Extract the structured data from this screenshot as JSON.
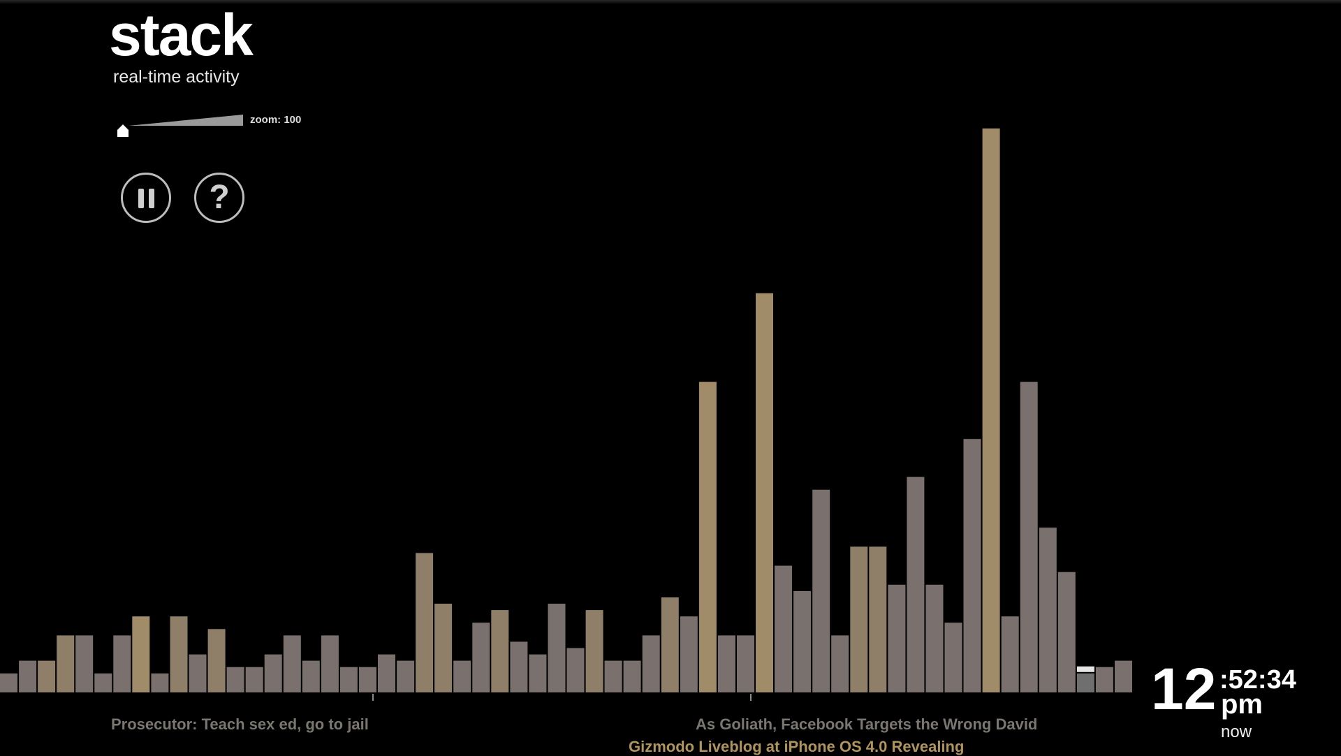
{
  "app": {
    "title": "stack",
    "subtitle": "real-time activity"
  },
  "controls": {
    "zoom_label": "zoom: 100",
    "zoom_value": 100,
    "pause_icon": "pause-icon",
    "help_icon": "help-icon"
  },
  "clock": {
    "hour": "12",
    "minutes_seconds": ":52:34",
    "ampm": "pm",
    "status": "now"
  },
  "headlines": [
    {
      "text": "Prosecutor: Teach sex ed, go to jail"
    },
    {
      "text": "As Goliath, Facebook Targets the Wrong David"
    },
    {
      "text": "Gizmodo Liveblog at iPhone OS 4.0 Revealing"
    }
  ],
  "colors": {
    "background": "#000000",
    "bar_neutral": "#7a716e",
    "bar_warm": "#8f7f69",
    "bar_gold": "#a08c68",
    "bar_current": "#6f6f6f",
    "headline_gray": "#7a7670",
    "headline_gold": "#b0945e"
  },
  "chart_data": {
    "type": "bar",
    "title": "",
    "xlabel": "",
    "ylabel": "",
    "ylim": [
      0,
      100
    ],
    "values": [
      3,
      5,
      5,
      9,
      9,
      3,
      9,
      12,
      3,
      12,
      6,
      10,
      4,
      4,
      6,
      9,
      5,
      9,
      4,
      4,
      6,
      5,
      22,
      14,
      5,
      11,
      13,
      8,
      6,
      14,
      7,
      13,
      5,
      5,
      9,
      15,
      12,
      49,
      9,
      9,
      63,
      20,
      16,
      32,
      9,
      23,
      23,
      17,
      34,
      17,
      11,
      40,
      89,
      12,
      49,
      26,
      19,
      3,
      4,
      5
    ],
    "tones": [
      "n",
      "n",
      "w",
      "w",
      "n",
      "n",
      "n",
      "g",
      "n",
      "w",
      "n",
      "w",
      "n",
      "n",
      "n",
      "n",
      "n",
      "n",
      "n",
      "n",
      "n",
      "n",
      "w",
      "w",
      "n",
      "n",
      "w",
      "n",
      "n",
      "n",
      "n",
      "w",
      "n",
      "n",
      "n",
      "w",
      "n",
      "g",
      "n",
      "n",
      "g",
      "n",
      "n",
      "n",
      "n",
      "w",
      "w",
      "n",
      "n",
      "n",
      "n",
      "n",
      "g",
      "n",
      "n",
      "n",
      "n",
      "c",
      "n",
      "n"
    ]
  }
}
